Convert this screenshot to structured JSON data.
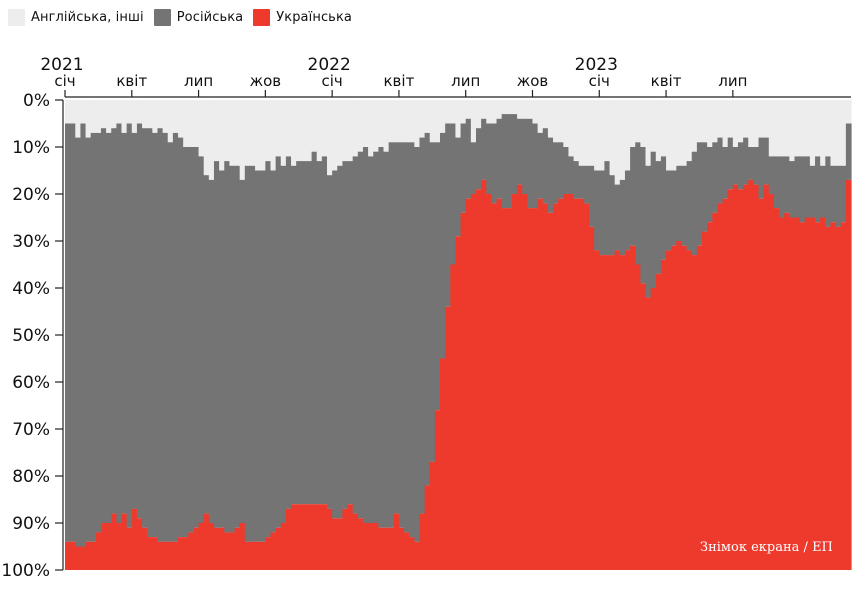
{
  "legend": [
    {
      "label": "Англійська, інші",
      "color": "#ededed"
    },
    {
      "label": "Російська",
      "color": "#747474"
    },
    {
      "label": "Українська",
      "color": "#ee3a2d"
    }
  ],
  "watermark": "Знімок екрана / ЕП",
  "chart_data": {
    "type": "area",
    "stacking": "percent",
    "y_axis": {
      "range": [
        0,
        100
      ],
      "inverted": true,
      "ticks": [
        "0%",
        "10%",
        "20%",
        "30%",
        "40%",
        "50%",
        "60%",
        "70%",
        "80%",
        "90%",
        "100%"
      ]
    },
    "x_axis": {
      "years": [
        {
          "label": "2021",
          "week": 0
        },
        {
          "label": "2022",
          "week": 52
        },
        {
          "label": "2023",
          "week": 104
        }
      ],
      "months": [
        {
          "label": "січ",
          "week": 0
        },
        {
          "label": "квіт",
          "week": 13
        },
        {
          "label": "лип",
          "week": 26
        },
        {
          "label": "жов",
          "week": 39
        },
        {
          "label": "січ",
          "week": 52
        },
        {
          "label": "квіт",
          "week": 65
        },
        {
          "label": "лип",
          "week": 78
        },
        {
          "label": "жов",
          "week": 91
        },
        {
          "label": "січ",
          "week": 104
        },
        {
          "label": "квіт",
          "week": 117
        },
        {
          "label": "лип",
          "week": 130
        }
      ]
    },
    "series": [
      {
        "name": "Англійська, інші",
        "note": "top band: share from 0% down to the grey boundary",
        "values": [
          5,
          5,
          8,
          5,
          8,
          7,
          7,
          6,
          7,
          6,
          5,
          7,
          5,
          7,
          5,
          6,
          6,
          7,
          6,
          7,
          9,
          7,
          8,
          10,
          10,
          10,
          12,
          16,
          17,
          13,
          15,
          13,
          14,
          14,
          17,
          14,
          14,
          15,
          15,
          13,
          15,
          12,
          14,
          12,
          14,
          13,
          13,
          13,
          11,
          13,
          12,
          16,
          15,
          14,
          13,
          13,
          12,
          11,
          10,
          12,
          11,
          10,
          11,
          9,
          9,
          9,
          9,
          9,
          10,
          8,
          7,
          9,
          9,
          7,
          5,
          5,
          8,
          5,
          4,
          9,
          6,
          4,
          5,
          5,
          4,
          3,
          3,
          3,
          4,
          4,
          4,
          5,
          7,
          6,
          8,
          9,
          9,
          10,
          12,
          13,
          14,
          14,
          14,
          15,
          15,
          13,
          16,
          18,
          17,
          15,
          10,
          9,
          10,
          14,
          11,
          13,
          12,
          15,
          15,
          14,
          14,
          13,
          11,
          9,
          9,
          10,
          9,
          8,
          10,
          8,
          10,
          9,
          8,
          10,
          10,
          8,
          8,
          12,
          12,
          12,
          12,
          13,
          12,
          12,
          12,
          14,
          12,
          14,
          12,
          14,
          14,
          14,
          5
        ],
        "source_unit": "percent of weekly mentions"
      },
      {
        "name": "Російська",
        "note": "middle band: grey share",
        "values_is_remainder": true
      },
      {
        "name": "Українська",
        "note": "bottom band: top edge position (Ukrainian share = 100 - value)",
        "values": [
          94,
          94,
          95,
          95,
          94,
          94,
          92,
          90,
          90,
          88,
          90,
          88,
          91,
          87,
          89,
          91,
          93,
          93,
          94,
          94,
          94,
          94,
          93,
          93,
          92,
          91,
          90,
          88,
          90,
          91,
          91,
          92,
          92,
          91,
          90,
          94,
          94,
          94,
          94,
          93,
          92,
          91,
          90,
          87,
          86,
          86,
          86,
          86,
          86,
          86,
          86,
          87,
          89,
          89,
          87,
          86,
          88,
          89,
          90,
          90,
          90,
          91,
          91,
          91,
          88,
          91,
          92,
          93,
          94,
          88,
          82,
          77,
          66,
          55,
          44,
          35,
          29,
          24,
          21,
          20,
          19,
          17,
          20,
          22,
          21,
          23,
          23,
          20,
          18,
          20,
          23,
          23,
          21,
          22,
          24,
          22,
          21,
          20,
          20,
          21,
          21,
          22,
          27,
          32,
          33,
          33,
          33,
          32,
          33,
          32,
          31,
          35,
          39,
          42,
          40,
          37,
          34,
          32,
          31,
          30,
          31,
          32,
          33,
          31,
          28,
          26,
          24,
          22,
          21,
          19,
          18,
          19,
          18,
          17,
          18,
          21,
          18,
          20,
          23,
          25,
          24,
          25,
          25,
          26,
          25,
          25,
          26,
          25,
          27,
          26,
          27,
          26,
          17
        ],
        "source_unit": "percent axis position"
      }
    ]
  }
}
